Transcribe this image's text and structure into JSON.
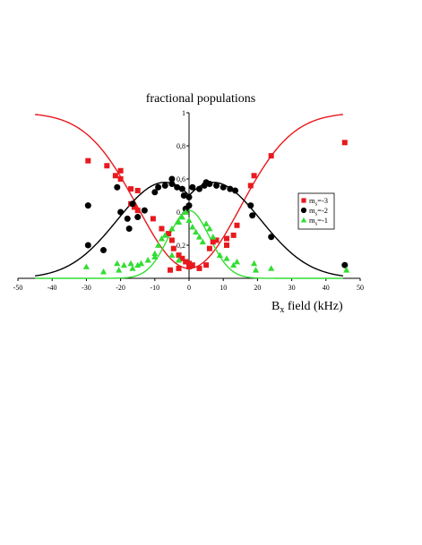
{
  "chart_data": {
    "type": "scatter",
    "title": "fractional populations",
    "xlabel": {
      "main": "B",
      "sub": "x",
      "rest": " field (kHz)"
    },
    "ylabel": "",
    "xlim": [
      -50,
      50
    ],
    "ylim": [
      0,
      1
    ],
    "x_ticks": [
      -50,
      -40,
      -30,
      -20,
      -10,
      0,
      10,
      20,
      30,
      40,
      50
    ],
    "x_tick_labels": [
      "-50",
      "-40",
      "-30",
      "-20",
      "-10",
      "0",
      "10",
      "20",
      "30",
      "40",
      "50"
    ],
    "y_ticks": [
      0,
      0.2,
      0.4,
      0.6,
      0.8,
      1
    ],
    "y_tick_labels": [
      "0",
      "0,2",
      "0,4",
      "0,6",
      "0,8",
      "1"
    ],
    "grid": false,
    "legend_position": "right",
    "series": [
      {
        "name": "m",
        "name_sub": "s",
        "name_rest": "=-3",
        "color": "#e8191e",
        "marker": "square",
        "points": [
          [
            -29.5,
            0.71
          ],
          [
            -24,
            0.68
          ],
          [
            -20,
            0.65
          ],
          [
            -21.5,
            0.62
          ],
          [
            -20,
            0.6
          ],
          [
            -17,
            0.54
          ],
          [
            -15,
            0.53
          ],
          [
            -17,
            0.45
          ],
          [
            -16,
            0.43
          ],
          [
            -15,
            0.41
          ],
          [
            -10.5,
            0.36
          ],
          [
            -8,
            0.3
          ],
          [
            -6,
            0.27
          ],
          [
            -5,
            0.23
          ],
          [
            -4.5,
            0.18
          ],
          [
            -3,
            0.14
          ],
          [
            -2,
            0.12
          ],
          [
            -1,
            0.1
          ],
          [
            0,
            0.09
          ],
          [
            1,
            0.08
          ],
          [
            3,
            0.06
          ],
          [
            5,
            0.08
          ],
          [
            6,
            0.18
          ],
          [
            7,
            0.22
          ],
          [
            8,
            0.23
          ],
          [
            11,
            0.2
          ],
          [
            13,
            0.26
          ],
          [
            14,
            0.32
          ],
          [
            18,
            0.56
          ],
          [
            19,
            0.62
          ],
          [
            24,
            0.74
          ],
          [
            45.5,
            0.82
          ],
          [
            -3,
            0.06
          ],
          [
            0,
            0.07
          ],
          [
            11,
            0.24
          ],
          [
            -5.5,
            0.05
          ]
        ]
      },
      {
        "name": "m",
        "name_sub": "s",
        "name_rest": "=-2",
        "color": "#000000",
        "marker": "circle",
        "points": [
          [
            -29.5,
            0.44
          ],
          [
            -29.5,
            0.2
          ],
          [
            -25,
            0.17
          ],
          [
            -21,
            0.55
          ],
          [
            -20,
            0.4
          ],
          [
            -18,
            0.36
          ],
          [
            -17.5,
            0.3
          ],
          [
            -16.5,
            0.45
          ],
          [
            -15,
            0.37
          ],
          [
            -13,
            0.41
          ],
          [
            -10,
            0.52
          ],
          [
            -9,
            0.55
          ],
          [
            -7,
            0.56
          ],
          [
            -5,
            0.6
          ],
          [
            -5,
            0.57
          ],
          [
            -3.5,
            0.55
          ],
          [
            -2,
            0.54
          ],
          [
            -1.5,
            0.5
          ],
          [
            0,
            0.49
          ],
          [
            1,
            0.55
          ],
          [
            3,
            0.54
          ],
          [
            4.5,
            0.56
          ],
          [
            5,
            0.58
          ],
          [
            6,
            0.57
          ],
          [
            8,
            0.56
          ],
          [
            10,
            0.55
          ],
          [
            12,
            0.54
          ],
          [
            13.5,
            0.53
          ],
          [
            18,
            0.44
          ],
          [
            18.5,
            0.38
          ],
          [
            24,
            0.25
          ],
          [
            -1,
            0.42
          ],
          [
            0,
            0.44
          ],
          [
            45.5,
            0.08
          ]
        ]
      },
      {
        "name": "m",
        "name_sub": "s",
        "name_rest": "=-1",
        "color": "#33dd33",
        "marker": "triangle",
        "points": [
          [
            -30,
            0.07
          ],
          [
            -25,
            0.04
          ],
          [
            -21,
            0.09
          ],
          [
            -20.5,
            0.05
          ],
          [
            -19,
            0.08
          ],
          [
            -17,
            0.09
          ],
          [
            -16.5,
            0.06
          ],
          [
            -15,
            0.08
          ],
          [
            -14,
            0.09
          ],
          [
            -12,
            0.11
          ],
          [
            -10,
            0.15
          ],
          [
            -9,
            0.2
          ],
          [
            -8,
            0.24
          ],
          [
            -7,
            0.26
          ],
          [
            -5,
            0.3
          ],
          [
            -3,
            0.34
          ],
          [
            -2,
            0.37
          ],
          [
            -1,
            0.4
          ],
          [
            0,
            0.35
          ],
          [
            1,
            0.31
          ],
          [
            2,
            0.28
          ],
          [
            3,
            0.25
          ],
          [
            4,
            0.22
          ],
          [
            5,
            0.33
          ],
          [
            6,
            0.3
          ],
          [
            7,
            0.25
          ],
          [
            9,
            0.14
          ],
          [
            11,
            0.12
          ],
          [
            13,
            0.08
          ],
          [
            14,
            0.1
          ],
          [
            19,
            0.09
          ],
          [
            19.5,
            0.05
          ],
          [
            24,
            0.06
          ],
          [
            46,
            0.05
          ],
          [
            -5,
            0.14
          ],
          [
            -10,
            0.13
          ],
          [
            -3,
            0.11
          ]
        ]
      }
    ],
    "fits": [
      {
        "color": "#e8191e",
        "function": "1 - 0.94 * exp(-x^2 / (2 * 15^2))",
        "x_range": [
          -45,
          45
        ]
      },
      {
        "color": "#000000",
        "function": "0.58 * exp(-(|x| - 7)^2 / (2 * 14^2)) for |x|>7 else 0.58 - 0.08*(1-|x|/7)^2",
        "x_range": [
          -45,
          45
        ]
      },
      {
        "color": "#33dd33",
        "function": "0.41 * exp(-x^2 / (2 * 6^2))",
        "x_range": [
          -45,
          45
        ]
      }
    ]
  }
}
